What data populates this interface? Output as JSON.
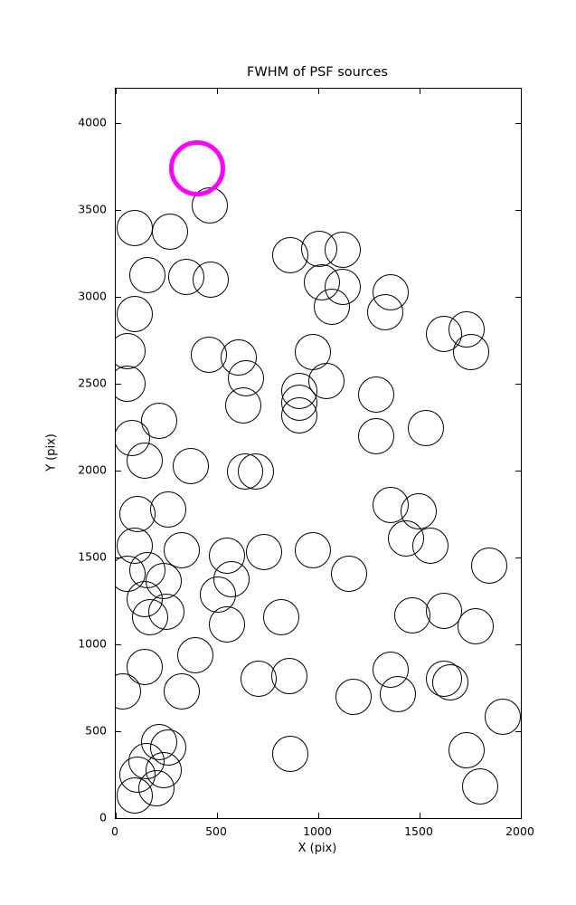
{
  "chart_data": {
    "type": "scatter",
    "title": "FWHM of PSF sources",
    "xlabel": "X (pix)",
    "ylabel": "Y (pix)",
    "xlim": [
      0,
      2000
    ],
    "ylim": [
      0,
      4200
    ],
    "x_ticks": [
      0,
      500,
      1000,
      1500,
      2000
    ],
    "y_ticks": [
      0,
      500,
      1000,
      1500,
      2000,
      2500,
      3000,
      3500,
      4000
    ],
    "grid": false,
    "legend": "none",
    "marker": {
      "shape": "open-circle",
      "radius_px": 20,
      "stroke": "#000000",
      "stroke_width": 1.8
    },
    "highlight": {
      "x": 400,
      "y": 3740,
      "radius_px": 31,
      "stroke": "#ff00ff",
      "stroke_width": 5,
      "meaning": "highlighted PSF source"
    },
    "points": [
      [
        465,
        3530
      ],
      [
        95,
        3395
      ],
      [
        270,
        3375
      ],
      [
        860,
        3240
      ],
      [
        1005,
        3280
      ],
      [
        1120,
        3270
      ],
      [
        155,
        3125
      ],
      [
        350,
        3115
      ],
      [
        470,
        3100
      ],
      [
        1020,
        3085
      ],
      [
        1120,
        3060
      ],
      [
        1355,
        3030
      ],
      [
        95,
        2905
      ],
      [
        1065,
        2945
      ],
      [
        1330,
        2915
      ],
      [
        1620,
        2790
      ],
      [
        1730,
        2815
      ],
      [
        60,
        2690
      ],
      [
        460,
        2670
      ],
      [
        605,
        2650
      ],
      [
        975,
        2685
      ],
      [
        1755,
        2685
      ],
      [
        60,
        2500
      ],
      [
        645,
        2530
      ],
      [
        1040,
        2515
      ],
      [
        905,
        2460
      ],
      [
        630,
        2375
      ],
      [
        905,
        2390
      ],
      [
        1285,
        2440
      ],
      [
        215,
        2285
      ],
      [
        905,
        2320
      ],
      [
        80,
        2190
      ],
      [
        1285,
        2200
      ],
      [
        1530,
        2245
      ],
      [
        145,
        2060
      ],
      [
        370,
        2025
      ],
      [
        640,
        1995
      ],
      [
        690,
        1995
      ],
      [
        105,
        1750
      ],
      [
        260,
        1775
      ],
      [
        1355,
        1805
      ],
      [
        1495,
        1765
      ],
      [
        95,
        1570
      ],
      [
        325,
        1545
      ],
      [
        550,
        1510
      ],
      [
        730,
        1530
      ],
      [
        975,
        1545
      ],
      [
        1435,
        1610
      ],
      [
        1555,
        1570
      ],
      [
        1845,
        1455
      ],
      [
        60,
        1405
      ],
      [
        235,
        1365
      ],
      [
        155,
        1430
      ],
      [
        570,
        1375
      ],
      [
        1150,
        1405
      ],
      [
        145,
        1260
      ],
      [
        505,
        1285
      ],
      [
        250,
        1190
      ],
      [
        170,
        1155
      ],
      [
        550,
        1115
      ],
      [
        815,
        1155
      ],
      [
        1465,
        1165
      ],
      [
        1620,
        1195
      ],
      [
        1775,
        1105
      ],
      [
        395,
        940
      ],
      [
        145,
        870
      ],
      [
        705,
        805
      ],
      [
        855,
        820
      ],
      [
        1355,
        855
      ],
      [
        1620,
        805
      ],
      [
        1650,
        780
      ],
      [
        35,
        730
      ],
      [
        325,
        730
      ],
      [
        1175,
        700
      ],
      [
        1395,
        715
      ],
      [
        1910,
        585
      ],
      [
        215,
        440
      ],
      [
        260,
        405
      ],
      [
        860,
        370
      ],
      [
        1730,
        390
      ],
      [
        105,
        250
      ],
      [
        235,
        275
      ],
      [
        150,
        330
      ],
      [
        200,
        170
      ],
      [
        95,
        130
      ],
      [
        1800,
        180
      ]
    ]
  }
}
